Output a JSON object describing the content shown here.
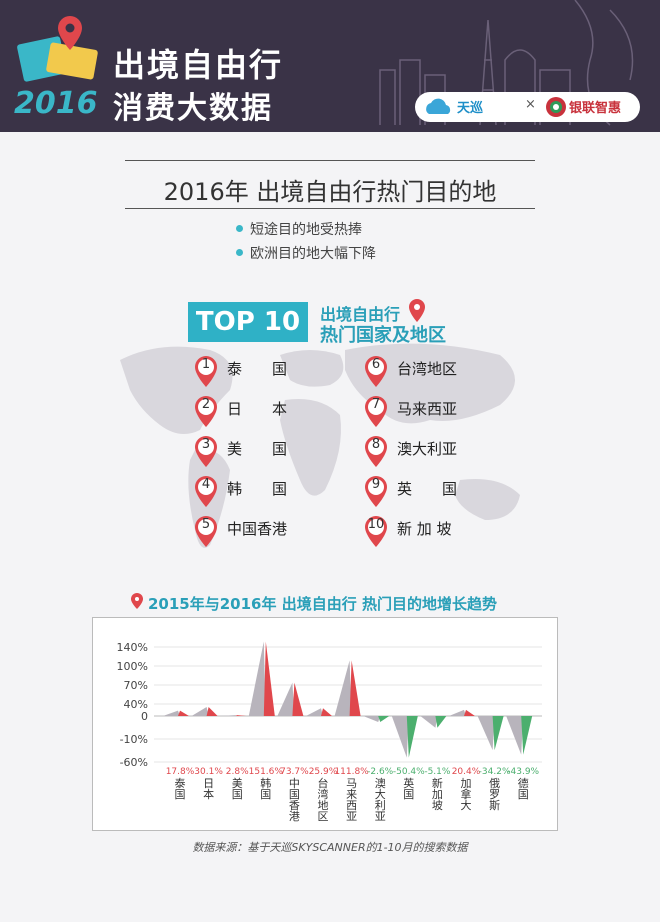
{
  "header": {
    "title_line1": "出境自由行",
    "year": "2016",
    "title_line2": "消费大数据",
    "logo_tianxun": "天巡",
    "logo_x": "×",
    "logo_unionpay": "银联智惠"
  },
  "section": {
    "title": "2016年 出境自由行热门目的地",
    "bullets": [
      "短途目的地受热捧",
      "欧洲目的地大幅下降"
    ]
  },
  "top10": {
    "badge": "TOP 10",
    "heading_line1": "出境自由行",
    "heading_line2": "热门国家及地区",
    "ranks": [
      {
        "num": "1",
        "name": "泰　　国"
      },
      {
        "num": "2",
        "name": "日　　本"
      },
      {
        "num": "3",
        "name": "美　　国"
      },
      {
        "num": "4",
        "name": "韩　　国"
      },
      {
        "num": "5",
        "name": "中国香港"
      },
      {
        "num": "6",
        "name": "台湾地区"
      },
      {
        "num": "7",
        "name": "马来西亚"
      },
      {
        "num": "8",
        "name": "澳大利亚"
      },
      {
        "num": "9",
        "name": "英　　国"
      },
      {
        "num": "10",
        "name": "新 加 坡"
      }
    ]
  },
  "chart_data": {
    "type": "area",
    "title": "2015年与2016年 出境自由行 热门目的地增长趋势",
    "categories": [
      "泰国",
      "日本",
      "美国",
      "韩国",
      "中国香港",
      "台湾地区",
      "马来西亚",
      "澳大利亚",
      "英国",
      "新加坡",
      "加拿大",
      "俄罗斯",
      "德国"
    ],
    "values": [
      17.8,
      30.1,
      2.8,
      151.6,
      73.7,
      25.9,
      111.8,
      -2.6,
      -50.4,
      -5.1,
      20.4,
      -34.2,
      -43.9
    ],
    "value_labels": [
      "17.8%",
      "30.1%",
      "2.8%",
      "151.6%",
      "73.7%",
      "25.9%",
      "111.8%",
      "-2.6%",
      "-50.4%",
      "-5.1%",
      "20.4%",
      "-34.2%",
      "-43.9%"
    ],
    "yticks": [
      "140%",
      "100%",
      "70%",
      "40%",
      "0",
      "-10%",
      "-60%"
    ],
    "ytick_values": [
      140,
      100,
      70,
      40,
      0,
      -10,
      -60
    ],
    "ylim": [
      -60,
      180
    ],
    "colors": {
      "positive": "#e0474c",
      "negative": "#4caf6e",
      "shadow": "#b8b4bc"
    },
    "grid": true
  },
  "source_note": "数据来源：基于天巡SKYSCANNER的1-10月的搜索数据"
}
